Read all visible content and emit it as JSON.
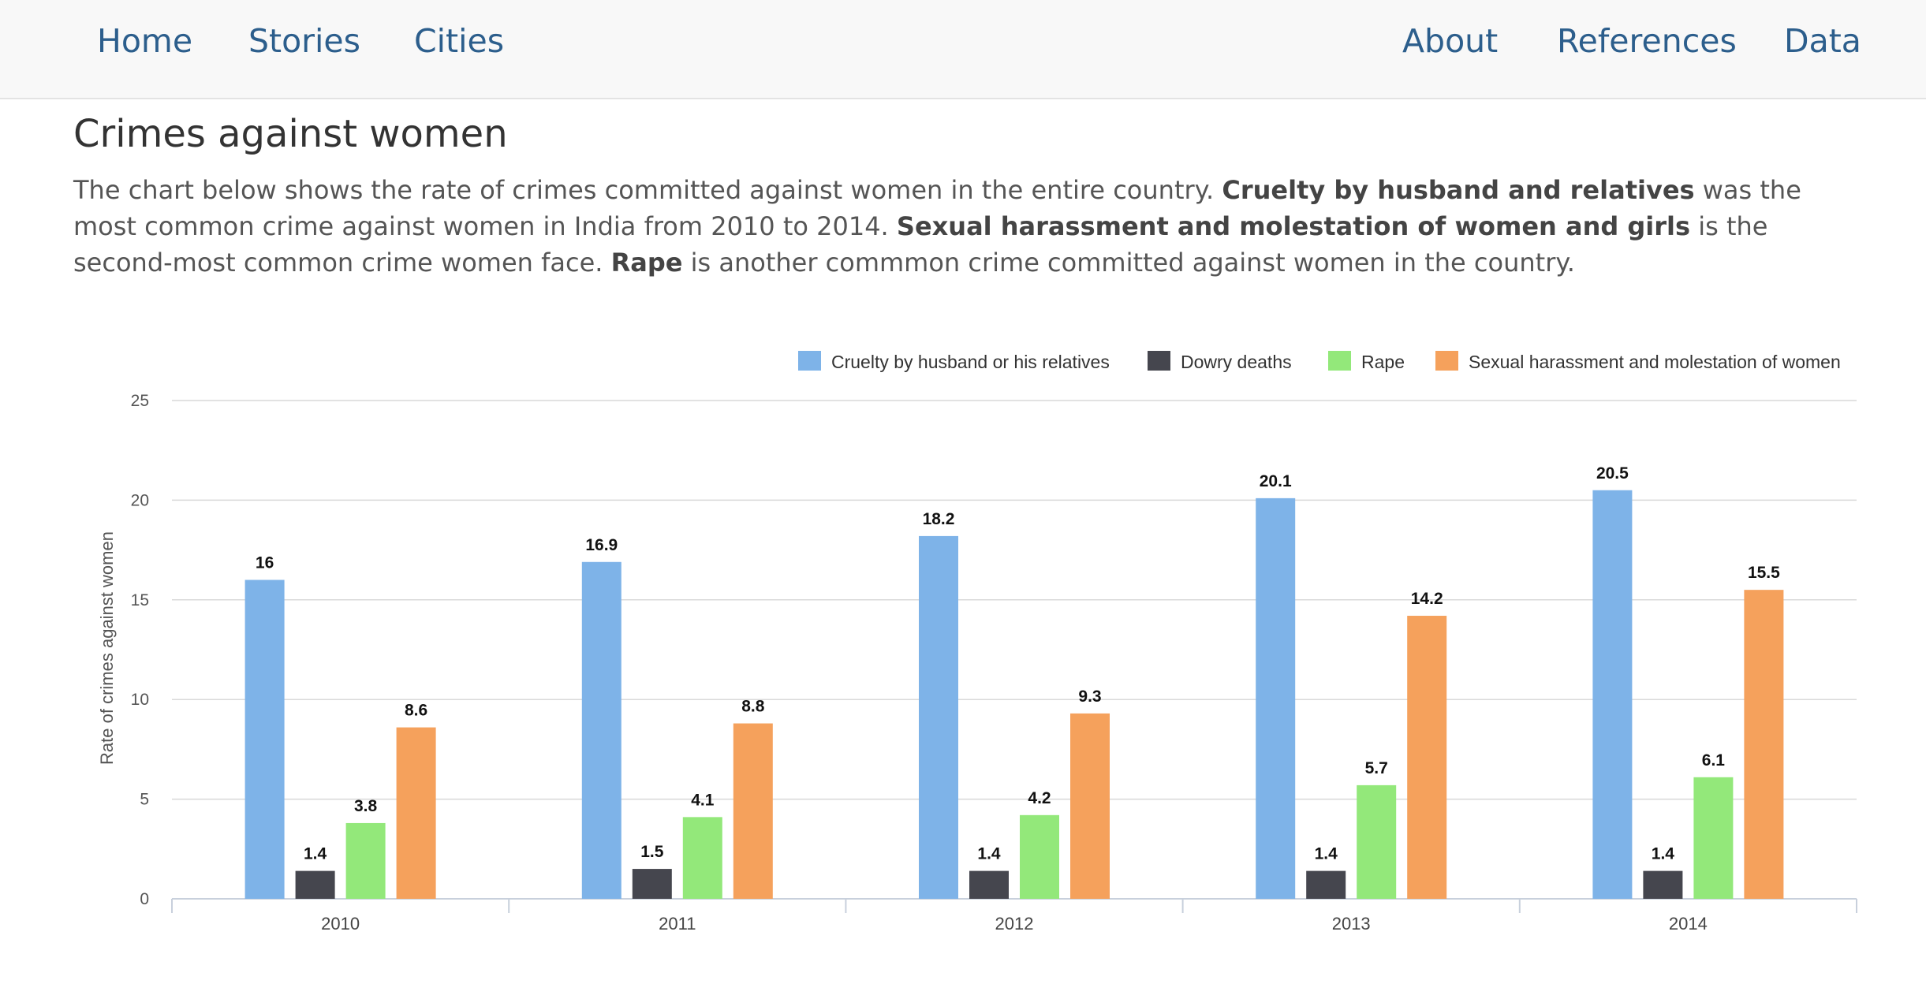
{
  "nav": {
    "home": "Home",
    "stories": "Stories",
    "cities": "Cities",
    "about": "About",
    "references": "References",
    "data": "Data"
  },
  "page": {
    "title": "Crimes against women",
    "intro_1": "The chart below shows the rate of crimes committed against women in the entire country. ",
    "intro_bold_1": "Cruelty by husband and relatives",
    "intro_2": " was the most common crime against women in India from 2010 to 2014. ",
    "intro_bold_2": "Sexual harassment and molestation of women and girls",
    "intro_3": " is the second-most common crime women face. ",
    "intro_bold_3": "Rape",
    "intro_4": " is another commmon crime committed against women in the country."
  },
  "colors": {
    "cruelty": "#7eb3e8",
    "dowry": "#45464e",
    "rape": "#93e87a",
    "harassment": "#f5a15c",
    "grid": "#d9d9d9",
    "axis": "#c8d0dc",
    "nav_link": "#2c5e8c"
  },
  "chart_data": {
    "type": "bar",
    "title": "",
    "xlabel": "",
    "ylabel": "Rate of crimes against women",
    "categories": [
      "2010",
      "2011",
      "2012",
      "2013",
      "2014"
    ],
    "ylim": [
      0,
      25
    ],
    "yticks": [
      0,
      5,
      10,
      15,
      20,
      25
    ],
    "grid": true,
    "legend_position": "top-right",
    "series": [
      {
        "name": "Cruelty by husband or his relatives",
        "color_key": "cruelty",
        "values": [
          16,
          16.9,
          18.2,
          20.1,
          20.5
        ]
      },
      {
        "name": "Dowry deaths",
        "color_key": "dowry",
        "values": [
          1.4,
          1.5,
          1.4,
          1.4,
          1.4
        ]
      },
      {
        "name": "Rape",
        "color_key": "rape",
        "values": [
          3.8,
          4.1,
          4.2,
          5.7,
          6.1
        ]
      },
      {
        "name": "Sexual harassment and molestation of women",
        "color_key": "harassment",
        "values": [
          8.6,
          8.8,
          9.3,
          14.2,
          15.5
        ]
      }
    ]
  }
}
